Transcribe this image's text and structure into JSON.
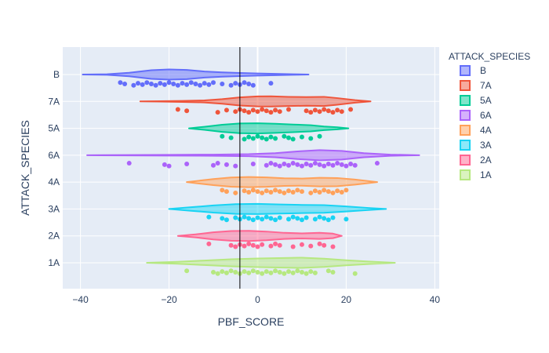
{
  "chart_data": {
    "type": "violin",
    "orientation": "horizontal",
    "xlabel": "PBF_SCORE",
    "ylabel": "ATTACK_SPECIES",
    "xlim": [
      -44,
      41
    ],
    "xticks": [
      -40,
      -20,
      0,
      20,
      40
    ],
    "xtick_labels": [
      "−40",
      "−20",
      "0",
      "20",
      "40"
    ],
    "grid": true,
    "reference_line_x": -4,
    "legend": {
      "title": "ATTACK_SPECIES",
      "placement": "right"
    },
    "series": [
      {
        "name": "B",
        "color": "#636efa",
        "violin": [
          [
            -39.5,
            0
          ],
          [
            -34,
            0.05
          ],
          [
            -29,
            0.35
          ],
          [
            -24,
            0.85
          ],
          [
            -20,
            1
          ],
          [
            -16,
            0.9
          ],
          [
            -12,
            0.6
          ],
          [
            -8,
            0.42
          ],
          [
            -4,
            0.3
          ],
          [
            0,
            0.22
          ],
          [
            4,
            0.14
          ],
          [
            8,
            0.06
          ],
          [
            11.5,
            0
          ]
        ],
        "points": [
          -31,
          -30,
          -28,
          -27,
          -26,
          -25,
          -24,
          -23,
          -22,
          -21,
          -20,
          -19,
          -18,
          -17,
          -16,
          -15,
          -14,
          -13,
          -12,
          -11,
          -10,
          -8,
          -6,
          -5,
          -4,
          -3,
          -2,
          -1,
          3
        ]
      },
      {
        "name": "7A",
        "color": "#ef553b",
        "violin": [
          [
            -26.5,
            0
          ],
          [
            -22,
            0.04
          ],
          [
            -17,
            0.1
          ],
          [
            -12,
            0.2
          ],
          [
            -8,
            0.45
          ],
          [
            -4,
            0.8
          ],
          [
            0,
            0.98
          ],
          [
            3,
            1
          ],
          [
            7,
            0.9
          ],
          [
            11,
            0.85
          ],
          [
            15,
            0.9
          ],
          [
            18,
            0.65
          ],
          [
            22,
            0.25
          ],
          [
            25.5,
            0
          ]
        ],
        "points": [
          -18,
          -16,
          -9,
          -7,
          -5,
          -4,
          -3,
          -2,
          -1,
          0,
          1,
          2,
          3,
          4,
          5,
          7,
          11,
          12,
          13,
          14,
          15,
          16,
          17,
          18,
          19,
          21
        ]
      },
      {
        "name": "5A",
        "color": "#00cc96",
        "violin": [
          [
            -15.5,
            0
          ],
          [
            -12,
            0.3
          ],
          [
            -8,
            0.7
          ],
          [
            -4,
            0.95
          ],
          [
            0,
            1
          ],
          [
            4,
            0.9
          ],
          [
            8,
            0.75
          ],
          [
            12,
            0.6
          ],
          [
            15,
            0.35
          ],
          [
            18,
            0.2
          ],
          [
            20.5,
            0
          ]
        ],
        "points": [
          -8,
          -6,
          -3,
          -2,
          -1,
          0,
          1,
          2,
          3,
          4,
          6,
          7,
          8,
          10,
          12,
          14
        ]
      },
      {
        "name": "6A",
        "color": "#ab63fa",
        "violin": [
          [
            -38.5,
            0
          ],
          [
            -30,
            0.04
          ],
          [
            -20,
            0.08
          ],
          [
            -10,
            0.12
          ],
          [
            -2,
            0.2
          ],
          [
            4,
            0.4
          ],
          [
            9,
            0.75
          ],
          [
            14,
            1
          ],
          [
            19,
            0.85
          ],
          [
            24,
            0.4
          ],
          [
            30,
            0.12
          ],
          [
            36.5,
            0
          ]
        ],
        "points": [
          -29,
          -21,
          -20,
          -16,
          -10,
          -9,
          -7,
          -5,
          -1,
          2,
          3,
          4,
          5,
          6,
          7,
          8,
          9,
          10,
          11,
          12,
          13,
          14,
          15,
          16,
          17,
          18,
          19,
          20,
          21,
          22,
          27
        ]
      },
      {
        "name": "4A",
        "color": "#ffa15a",
        "violin": [
          [
            -16,
            0
          ],
          [
            -10,
            0.6
          ],
          [
            -6,
            0.9
          ],
          [
            -2,
            1
          ],
          [
            2,
            0.92
          ],
          [
            6,
            0.75
          ],
          [
            10,
            0.7
          ],
          [
            14,
            0.85
          ],
          [
            18,
            0.8
          ],
          [
            22,
            0.5
          ],
          [
            27,
            0
          ]
        ],
        "points": [
          -8,
          -7,
          -5,
          -3,
          -2,
          -1,
          0,
          1,
          2,
          3,
          4,
          5,
          6,
          7,
          8,
          9,
          10,
          12,
          13,
          14,
          15,
          16,
          17,
          18,
          19,
          20
        ]
      },
      {
        "name": "3A",
        "color": "#19d3f3",
        "violin": [
          [
            -20,
            0
          ],
          [
            -15,
            0.35
          ],
          [
            -10,
            0.7
          ],
          [
            -5,
            0.95
          ],
          [
            0,
            1
          ],
          [
            5,
            0.9
          ],
          [
            10,
            0.8
          ],
          [
            15,
            0.75
          ],
          [
            20,
            0.5
          ],
          [
            25,
            0.2
          ],
          [
            29,
            0
          ]
        ],
        "points": [
          -11,
          -8,
          -7,
          -5,
          -4,
          -3,
          -2,
          -1,
          0,
          1,
          2,
          3,
          4,
          5,
          7,
          8,
          9,
          10,
          11,
          13,
          14,
          15,
          16,
          17,
          20
        ]
      },
      {
        "name": "2A",
        "color": "#ff6692",
        "violin": [
          [
            -18,
            0
          ],
          [
            -14,
            0.3
          ],
          [
            -10,
            0.7
          ],
          [
            -6,
            0.95
          ],
          [
            -2,
            1
          ],
          [
            2,
            0.85
          ],
          [
            6,
            0.6
          ],
          [
            10,
            0.5
          ],
          [
            14,
            0.6
          ],
          [
            17,
            0.45
          ],
          [
            19,
            0
          ]
        ],
        "points": [
          -11,
          -6,
          -5,
          -4,
          -3,
          -2,
          -1,
          0,
          1,
          3,
          4,
          5,
          8,
          10,
          12,
          14,
          15,
          17
        ]
      },
      {
        "name": "1A",
        "color": "#b6e880",
        "violin": [
          [
            -25,
            0
          ],
          [
            -18,
            0.2
          ],
          [
            -12,
            0.45
          ],
          [
            -6,
            0.7
          ],
          [
            0,
            0.85
          ],
          [
            6,
            0.95
          ],
          [
            10,
            1
          ],
          [
            15,
            0.8
          ],
          [
            20,
            0.5
          ],
          [
            25,
            0.25
          ],
          [
            31,
            0
          ]
        ],
        "points": [
          -16,
          -10,
          -9,
          -8,
          -7,
          -6,
          -5,
          -4,
          -3,
          -2,
          -1,
          0,
          1,
          2,
          3,
          4,
          5,
          6,
          7,
          8,
          9,
          10,
          11,
          12,
          13,
          16,
          17,
          22
        ]
      }
    ]
  }
}
